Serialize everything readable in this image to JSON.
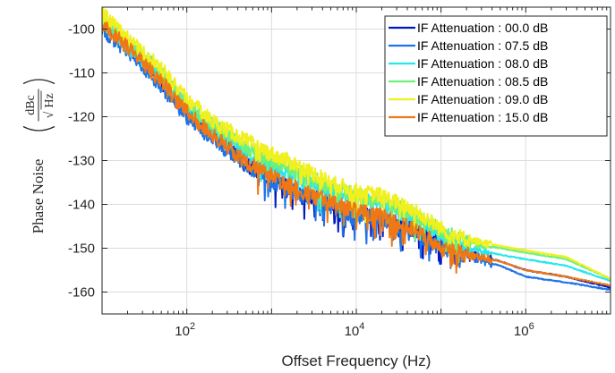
{
  "chart_data": {
    "type": "line",
    "title": "",
    "xlabel": "Offset Frequency (Hz)",
    "ylabel": {
      "text": "Phase Noise",
      "unit_numerator": "dBc",
      "unit_denominator_radical": "√",
      "unit_denominator": "Hz"
    },
    "xscale": "log",
    "xlim": [
      10,
      10000000
    ],
    "ylim": [
      -165,
      -95
    ],
    "grid": true,
    "legend_position": "top-right",
    "x_ticks": [
      {
        "value": 100,
        "base": "10",
        "exp": "2"
      },
      {
        "value": 10000,
        "base": "10",
        "exp": "4"
      },
      {
        "value": 1000000,
        "base": "10",
        "exp": "6"
      }
    ],
    "y_ticks": [
      {
        "value": -100,
        "label": "-100"
      },
      {
        "value": -110,
        "label": "-110"
      },
      {
        "value": -120,
        "label": "-120"
      },
      {
        "value": -130,
        "label": "-130"
      },
      {
        "value": -140,
        "label": "-140"
      },
      {
        "value": -150,
        "label": "-150"
      },
      {
        "value": -160,
        "label": "-160"
      }
    ],
    "series": [
      {
        "name": "IF Attenuation : 00.0 dB",
        "color": "#0019c8",
        "x": [
          10,
          20,
          50,
          100,
          200,
          500,
          1000,
          2000,
          5000,
          10000,
          20000,
          50000,
          100000,
          200000,
          500000,
          1000000,
          3000000,
          10000000
        ],
        "y": [
          -98,
          -104,
          -112,
          -119,
          -124,
          -131,
          -134,
          -137,
          -140,
          -142,
          -143,
          -146,
          -149,
          -151,
          -153,
          -155,
          -156.5,
          -159
        ]
      },
      {
        "name": "IF Attenuation : 07.5 dB",
        "color": "#1e73e6",
        "x": [
          10,
          20,
          50,
          100,
          200,
          500,
          1000,
          2000,
          5000,
          10000,
          20000,
          50000,
          100000,
          200000,
          500000,
          1000000,
          3000000,
          10000000
        ],
        "y": [
          -100,
          -105,
          -113,
          -120,
          -125,
          -131,
          -134.5,
          -137.5,
          -140.5,
          -142.5,
          -143.5,
          -147,
          -150,
          -152,
          -154,
          -156.5,
          -157.8,
          -159.5
        ]
      },
      {
        "name": "IF Attenuation : 08.0 dB",
        "color": "#28e6ec",
        "x": [
          10,
          20,
          50,
          100,
          200,
          500,
          1000,
          2000,
          5000,
          10000,
          20000,
          50000,
          100000,
          200000,
          500000,
          1000000,
          3000000,
          10000000
        ],
        "y": [
          -98,
          -104,
          -111,
          -118,
          -123,
          -128,
          -131.5,
          -134,
          -137,
          -138.5,
          -139.5,
          -143,
          -147,
          -150,
          -151.5,
          -152.5,
          -154,
          -157.5
        ]
      },
      {
        "name": "IF Attenuation : 08.5 dB",
        "color": "#6ef07a",
        "x": [
          10,
          20,
          50,
          100,
          200,
          500,
          1000,
          2000,
          5000,
          10000,
          20000,
          50000,
          100000,
          200000,
          500000,
          1000000,
          3000000,
          10000000
        ],
        "y": [
          -98,
          -103,
          -110,
          -117,
          -122,
          -127,
          -130,
          -132.5,
          -136,
          -138,
          -139,
          -142.5,
          -146,
          -148.5,
          -150,
          -151,
          -152.5,
          -157
        ]
      },
      {
        "name": "IF Attenuation : 09.0 dB",
        "color": "#f0f01e",
        "x": [
          10,
          20,
          50,
          100,
          200,
          500,
          1000,
          2000,
          5000,
          10000,
          20000,
          50000,
          100000,
          200000,
          500000,
          1000000,
          3000000,
          10000000
        ],
        "y": [
          -96.5,
          -102,
          -109,
          -116,
          -121,
          -125.5,
          -128.5,
          -131,
          -135,
          -137,
          -138,
          -141.5,
          -145.5,
          -148,
          -149.5,
          -150.5,
          -152,
          -157
        ]
      },
      {
        "name": "IF Attenuation : 15.0 dB",
        "color": "#f07814",
        "x": [
          10,
          20,
          50,
          100,
          200,
          500,
          1000,
          2000,
          5000,
          10000,
          20000,
          50000,
          100000,
          200000,
          500000,
          1000000,
          3000000,
          10000000
        ],
        "y": [
          -99,
          -104,
          -112,
          -119,
          -124,
          -130.5,
          -133.5,
          -136.5,
          -139.5,
          -141.5,
          -142.5,
          -146,
          -149.5,
          -151.5,
          -153,
          -155,
          -156.5,
          -158.5
        ]
      }
    ]
  }
}
